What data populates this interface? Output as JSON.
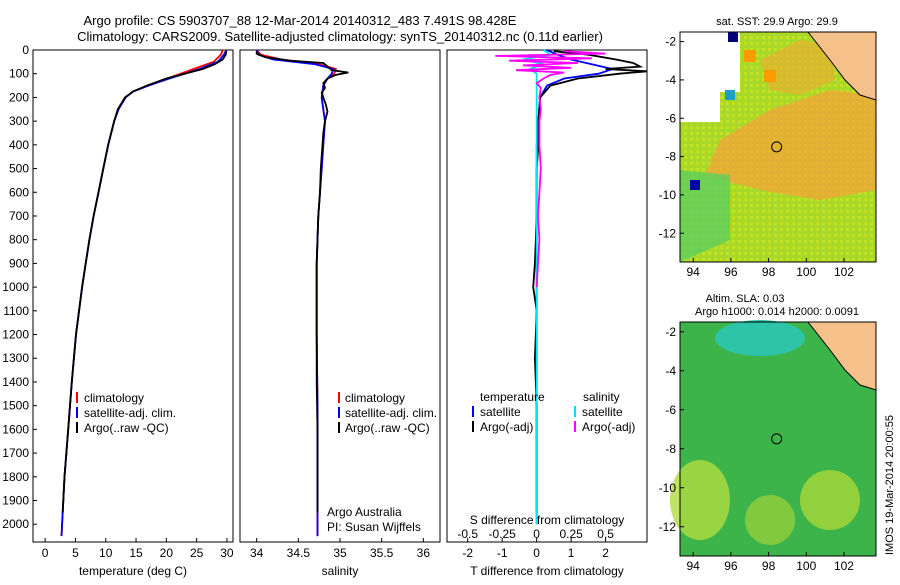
{
  "title": {
    "line1": "Argo profile: CS 5903707_88 12-Mar-2014 20140312_483 7.491S 98.428E",
    "line2": "Climatology: CARS2009. Satellite-adjusted climatology: synTS_20140312.nc (0.11d earlier)"
  },
  "stamp": "IMOS 19-Mar-2014 20:00:55",
  "colors": {
    "climatology": "#ff0000",
    "satellite": "#0000ff",
    "argo": "#000000",
    "sal_satellite": "#00e5ee",
    "sal_argo": "#ff00ff",
    "land": "#f5c08a"
  },
  "chart_data": [
    {
      "type": "line",
      "name": "temperature-profile",
      "xlabel": "temperature (deg C)",
      "x_ticks": [
        "0",
        "5",
        "10",
        "15",
        "20",
        "25",
        "30"
      ],
      "xlim": [
        -2,
        31
      ],
      "ylim": [
        2075,
        0
      ],
      "y_ticks": [
        "0",
        "100",
        "200",
        "300",
        "400",
        "500",
        "600",
        "700",
        "800",
        "900",
        "1000",
        "1100",
        "1200",
        "1300",
        "1400",
        "1500",
        "1600",
        "1700",
        "1800",
        "1900",
        "2000"
      ],
      "legend": [
        "climatology",
        "satellite-adj. clim.",
        "Argo(..raw -QC)"
      ],
      "series": [
        {
          "name": "climatology",
          "key": "clim",
          "depth": [
            0,
            20,
            50,
            80,
            120,
            150,
            175,
            200,
            250,
            300,
            400,
            500,
            600,
            700,
            800,
            900,
            1000,
            1200,
            1400,
            1600,
            1800,
            2000,
            2050
          ],
          "values": [
            29.3,
            29.0,
            27.8,
            24.5,
            20.2,
            17.0,
            14.5,
            13.2,
            12.1,
            11.4,
            10.4,
            9.6,
            8.8,
            8.0,
            7.3,
            6.7,
            6.1,
            5.1,
            4.4,
            3.8,
            3.2,
            2.8,
            2.7
          ]
        },
        {
          "name": "satellite-adj. clim.",
          "key": "sat",
          "depth": [
            0,
            20,
            50,
            80,
            120,
            150,
            175,
            200,
            250,
            300,
            400,
            500,
            600,
            700,
            800,
            900,
            1000,
            1200,
            1400,
            1600,
            1800,
            2000,
            2050
          ],
          "values": [
            29.9,
            29.5,
            28.5,
            25.5,
            20.5,
            17.0,
            14.5,
            13.3,
            12.1,
            11.4,
            10.4,
            9.6,
            8.8,
            8.0,
            7.3,
            6.7,
            6.1,
            5.1,
            4.4,
            3.8,
            3.2,
            2.8,
            2.7
          ]
        },
        {
          "name": "Argo(..raw -QC)",
          "key": "argo",
          "depth": [
            5,
            20,
            40,
            60,
            80,
            100,
            120,
            150,
            175,
            200,
            250,
            300,
            400,
            500,
            600,
            700,
            800,
            900,
            1000,
            1200,
            1400,
            1600,
            1800,
            1950
          ],
          "values": [
            29.9,
            29.8,
            29.3,
            28.0,
            26.0,
            23.0,
            20.0,
            16.8,
            14.5,
            13.2,
            12.0,
            11.4,
            10.4,
            9.6,
            8.8,
            8.0,
            7.3,
            6.7,
            6.1,
            5.1,
            4.4,
            3.8,
            3.2,
            2.9
          ]
        }
      ]
    },
    {
      "type": "line",
      "name": "salinity-profile",
      "xlabel": "salinity",
      "x_ticks": [
        "34",
        "34.5",
        "35",
        "35.5",
        "36"
      ],
      "xlim": [
        33.8,
        36.2
      ],
      "ylim": [
        2075,
        0
      ],
      "legend": [
        "climatology",
        "satellite-adj. clim.",
        "Argo(..raw -QC)"
      ],
      "annotation": [
        "Argo Australia",
        "PI: Susan Wijffels"
      ],
      "series": [
        {
          "name": "climatology",
          "key": "clim",
          "depth": [
            0,
            20,
            40,
            60,
            80,
            100,
            120,
            150,
            200,
            250,
            300,
            400,
            500,
            600,
            700,
            800,
            900,
            1000,
            1200,
            1500,
            1800,
            2000,
            2050
          ],
          "values": [
            34.0,
            34.05,
            34.3,
            34.75,
            34.95,
            34.93,
            34.85,
            34.8,
            34.78,
            34.8,
            34.82,
            34.8,
            34.78,
            34.76,
            34.74,
            34.73,
            34.72,
            34.72,
            34.72,
            34.73,
            34.73,
            34.73,
            34.73
          ]
        },
        {
          "name": "satellite-adj. clim.",
          "key": "sat",
          "depth": [
            0,
            20,
            40,
            60,
            80,
            100,
            120,
            150,
            200,
            250,
            300,
            400,
            500,
            600,
            700,
            800,
            900,
            1000,
            1200,
            1500,
            1800,
            2000,
            2050
          ],
          "values": [
            34.0,
            34.02,
            34.2,
            34.7,
            34.92,
            34.9,
            34.85,
            34.8,
            34.78,
            34.8,
            34.82,
            34.8,
            34.78,
            34.76,
            34.74,
            34.73,
            34.72,
            34.72,
            34.72,
            34.73,
            34.73,
            34.73,
            34.73
          ]
        },
        {
          "name": "Argo(..raw -QC)",
          "key": "argo",
          "depth": [
            5,
            15,
            30,
            45,
            55,
            70,
            85,
            95,
            105,
            120,
            140,
            160,
            180,
            200,
            230,
            260,
            300,
            350,
            400,
            500,
            600,
            700,
            800,
            900,
            1000,
            1200,
            1400,
            1600,
            1800,
            1950
          ],
          "values": [
            34.0,
            34.0,
            34.1,
            34.4,
            34.8,
            34.85,
            34.9,
            35.1,
            34.95,
            34.85,
            34.8,
            34.82,
            34.78,
            34.8,
            34.83,
            34.85,
            34.82,
            34.8,
            34.79,
            34.77,
            34.76,
            34.74,
            34.73,
            34.72,
            34.72,
            34.72,
            34.72,
            34.73,
            34.73,
            34.73
          ]
        }
      ]
    },
    {
      "type": "line",
      "name": "difference-profile",
      "xlabel": "T difference from climatology",
      "xlabel_top": "S difference from climatology",
      "x_ticks": [
        "-2",
        "-1",
        "0",
        "1",
        "2"
      ],
      "s_ticks": [
        "-0.5",
        "-0.25",
        "0",
        "0.25",
        "0.5"
      ],
      "xlim": [
        -2.6,
        3.2
      ],
      "ylim": [
        2075,
        0
      ],
      "legend_titles": [
        "temperature",
        "salinity"
      ],
      "legend": [
        "satellite",
        "Argo(-adj)",
        "satellite",
        "Argo(-adj)"
      ],
      "series": [
        {
          "name": "temperature satellite",
          "key": "sat",
          "depth": [
            0,
            20,
            40,
            60,
            80,
            100,
            120,
            150,
            200,
            300,
            400,
            500,
            700,
            900,
            1100,
            1400,
            1700,
            2000
          ],
          "values": [
            0.3,
            0.6,
            1.0,
            1.6,
            2.2,
            1.8,
            0.8,
            0.3,
            0.1,
            0.05,
            0.0,
            0.0,
            0.0,
            0.0,
            0.0,
            0.0,
            0.0,
            0.0
          ]
        },
        {
          "name": "temperature Argo(-adj)",
          "key": "argo",
          "depth": [
            5,
            20,
            40,
            55,
            70,
            80,
            90,
            100,
            120,
            150,
            200,
            300,
            400,
            500,
            700,
            900,
            1000,
            1100,
            1300,
            1500,
            1700,
            1950
          ],
          "values": [
            0.5,
            1.5,
            2.3,
            2.8,
            3.0,
            2.0,
            3.2,
            2.4,
            1.2,
            0.4,
            0.1,
            0.05,
            0.05,
            0.0,
            0.0,
            -0.05,
            -0.1,
            0.0,
            -0.05,
            0.0,
            0.0,
            0.0
          ]
        },
        {
          "name": "salinity satellite",
          "key": "ssat",
          "depth": [
            0,
            20,
            40,
            60,
            80,
            100,
            120,
            150,
            200,
            300,
            400,
            500,
            700,
            900,
            1100,
            1400,
            1700,
            2000
          ],
          "values": [
            0.05,
            0.1,
            -0.1,
            0.05,
            -0.05,
            0.0,
            0.0,
            0.0,
            0.0,
            0.0,
            0.0,
            0.0,
            0.0,
            0.0,
            0.0,
            0.0,
            0.0,
            0.0
          ]
        },
        {
          "name": "salinity Argo(-adj)",
          "key": "sargo",
          "depth": [
            5,
            15,
            25,
            35,
            45,
            55,
            65,
            75,
            85,
            95,
            105,
            120,
            140,
            160,
            200,
            250,
            300,
            400,
            500,
            600,
            700,
            800,
            900,
            1000
          ],
          "values": [
            0.2,
            0.5,
            -0.3,
            0.4,
            -0.2,
            0.3,
            -0.1,
            0.25,
            -0.15,
            0.2,
            0.1,
            0.05,
            0.0,
            0.03,
            0.02,
            0.03,
            0.02,
            0.02,
            0.03,
            0.02,
            0.01,
            0.02,
            0.01,
            0.0
          ]
        }
      ]
    },
    {
      "type": "heatmap",
      "name": "sst-map",
      "title": "sat. SST: 29.9 Argo: 29.9",
      "x_ticks": [
        "94",
        "96",
        "98",
        "100",
        "102"
      ],
      "y_ticks": [
        "-2",
        "-4",
        "-6",
        "-8",
        "-10",
        "-12"
      ],
      "xlim": [
        93.3,
        103.7
      ],
      "ylim": [
        -13.5,
        -1.5
      ],
      "argo_position": [
        98.428,
        -7.491
      ]
    },
    {
      "type": "heatmap",
      "name": "sla-map",
      "title_line1": "Altim. SLA: 0.03",
      "title_line2": "Argo h1000: 0.014 h2000: 0.0091",
      "x_ticks": [
        "94",
        "96",
        "98",
        "100",
        "102"
      ],
      "y_ticks": [
        "-2",
        "-4",
        "-6",
        "-8",
        "-10",
        "-12"
      ],
      "xlim": [
        93.3,
        103.7
      ],
      "ylim": [
        -13.5,
        -1.5
      ],
      "argo_position": [
        98.428,
        -7.491
      ]
    }
  ]
}
